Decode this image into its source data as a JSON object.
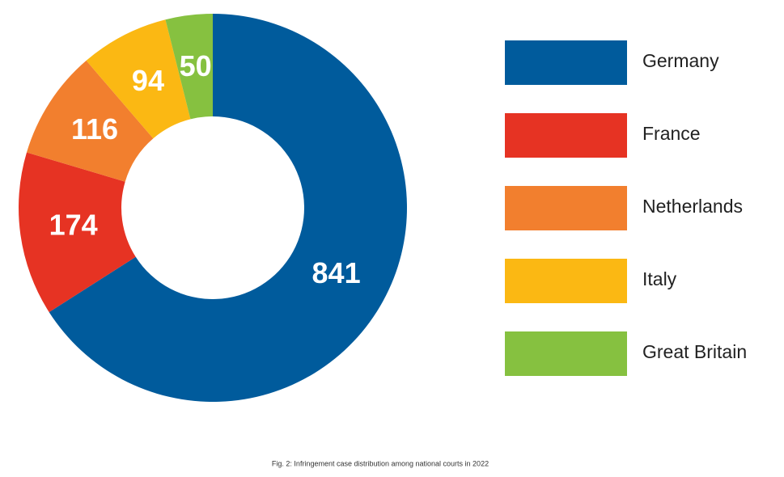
{
  "chart_data": {
    "type": "pie",
    "donut": true,
    "categories": [
      "Germany",
      "France",
      "Netherlands",
      "Italy",
      "Great Britain"
    ],
    "values": [
      841,
      174,
      116,
      94,
      50
    ],
    "colors": [
      "#005b9c",
      "#e63323",
      "#f27f2e",
      "#fbb813",
      "#86c140"
    ],
    "caption": "Fig. 2: Infringement case distribution among national courts in 2022"
  }
}
